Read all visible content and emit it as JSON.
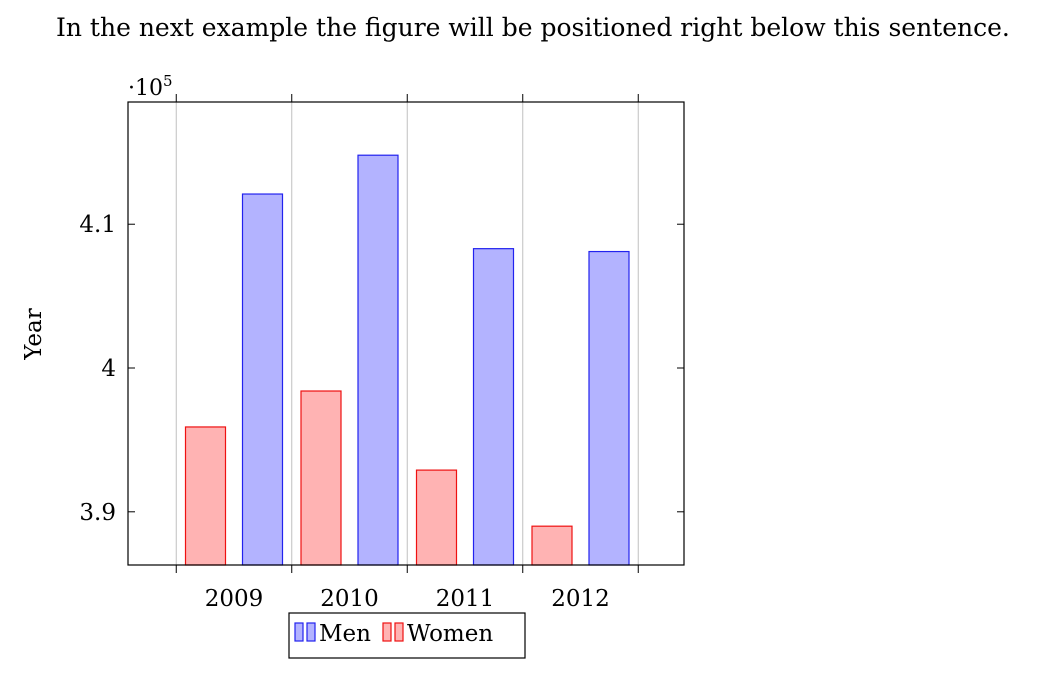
{
  "text": {
    "sentence": "In the next example the figure will be positioned right below this sentence."
  },
  "chart_data": {
    "type": "bar",
    "categories": [
      "2009",
      "2010",
      "2011",
      "2012"
    ],
    "series": [
      {
        "name": "Women",
        "values": [
          395900,
          398400,
          392900,
          389000
        ],
        "fill": "#ffb3b3",
        "stroke": "#ee1111"
      },
      {
        "name": "Men",
        "values": [
          412100,
          414800,
          408300,
          408100
        ],
        "fill": "#b3b3ff",
        "stroke": "#2222ee"
      }
    ],
    "ylabel": "Year",
    "xlabel": "",
    "ylim": [
      386300,
      418500
    ],
    "yticks": [
      390000,
      400000,
      410000
    ],
    "ytick_labels": [
      "3.9",
      "4",
      "4.1"
    ],
    "y_scale_label": "·10",
    "y_scale_exponent": "5",
    "legend": {
      "position": "bottom-center",
      "order": [
        "Men",
        "Women"
      ]
    },
    "grid": "x-major"
  }
}
